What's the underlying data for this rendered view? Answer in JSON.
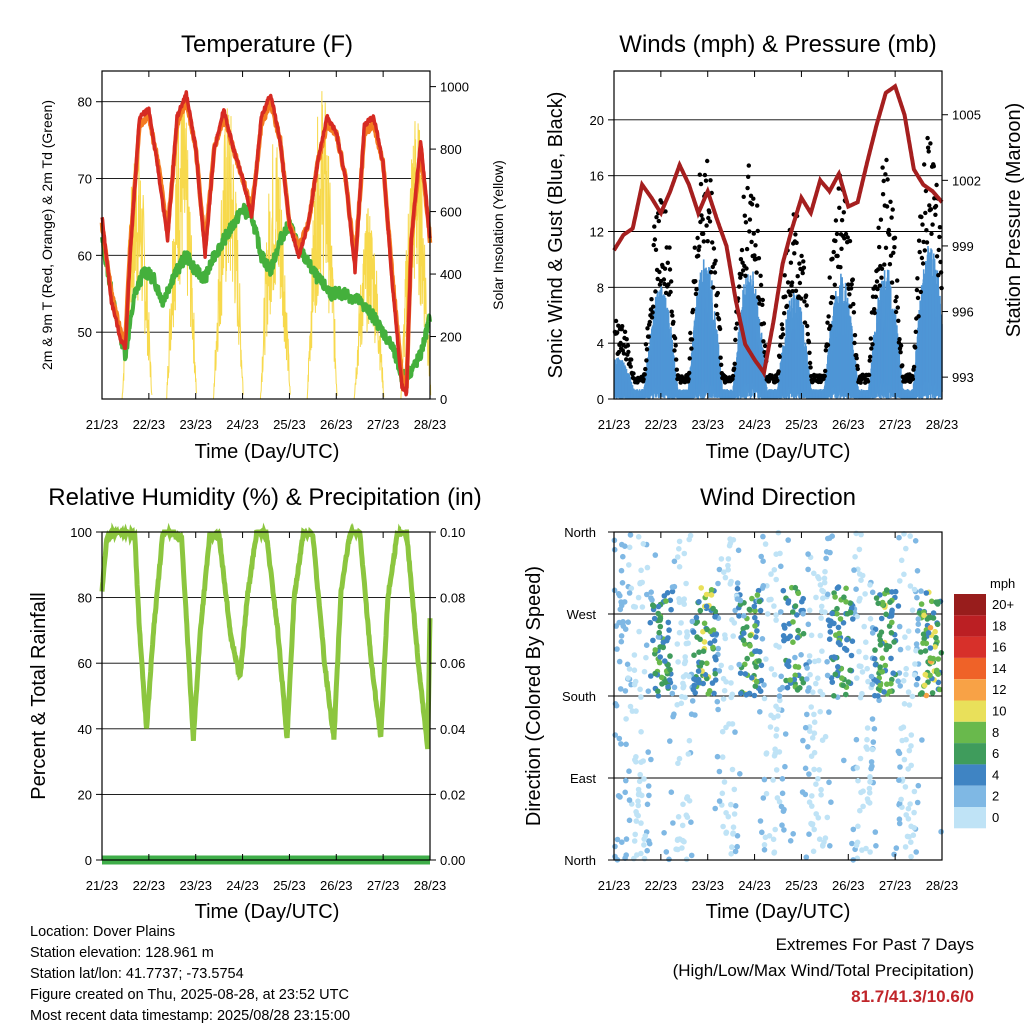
{
  "info": {
    "location": "Location: Dover Plains",
    "elevation": "Station elevation: 128.961 m",
    "latlon": "Station lat/lon: 41.7737; -73.5754",
    "created": "Figure created on Thu, 2025-08-28, at 23:52 UTC",
    "recent": "Most recent data timestamp: 2025/08/28 23:15:00"
  },
  "extremes": {
    "title": "Extremes For Past 7 Days",
    "subtitle": "(High/Low/Max Wind/Total Precipitation)",
    "value": "81.7/41.3/10.6/0"
  },
  "colors": {
    "temp_2m": "#d62a22",
    "temp_9m": "#f47c20",
    "dewpoint": "#44b03c",
    "solar": "#f7d94c",
    "wind": "#4f96d6",
    "gust": "#000000",
    "pressure": "#a51f1f",
    "rh": "#8cc63f",
    "precip": "#3fae49"
  },
  "chart_data": [
    {
      "id": "temperature",
      "type": "line",
      "title": "Temperature (F)",
      "xlabel": "Time (Day/UTC)",
      "ylabel": "2m & 9m T (Red, Orange) & 2m Td (Green)",
      "y2label": "Solar Insolation (Yellow)",
      "xticks": [
        "21/23",
        "22/23",
        "23/23",
        "24/23",
        "25/23",
        "26/23",
        "27/23",
        "28/23"
      ],
      "xlim": [
        0,
        7
      ],
      "ylim": [
        41.3,
        84
      ],
      "yticks": [
        50,
        60,
        70,
        80
      ],
      "y2lim": [
        0,
        1050
      ],
      "y2ticks": [
        0,
        200,
        400,
        600,
        800,
        1000
      ],
      "grid": true,
      "series": [
        {
          "key": "temp_2m",
          "x": [
            0,
            0.2,
            0.4,
            0.5,
            0.6,
            0.8,
            1.0,
            1.2,
            1.4,
            1.6,
            1.8,
            2.0,
            2.2,
            2.4,
            2.6,
            2.8,
            3.0,
            3.2,
            3.4,
            3.6,
            3.8,
            4.0,
            4.2,
            4.4,
            4.6,
            4.8,
            5.0,
            5.2,
            5.4,
            5.6,
            5.8,
            6.0,
            6.2,
            6.4,
            6.5,
            6.6,
            6.8,
            7.0
          ],
          "y": [
            65,
            54,
            49,
            48,
            60,
            78,
            79,
            71,
            62,
            78,
            81,
            74,
            60,
            74,
            79,
            74,
            70,
            65,
            78,
            81,
            75,
            64,
            60,
            64,
            72,
            78,
            76,
            70,
            58,
            77,
            78,
            72,
            56,
            43,
            42,
            62,
            75,
            62
          ]
        },
        {
          "key": "temp_9m",
          "x": [
            0,
            0.2,
            0.4,
            0.5,
            0.6,
            0.8,
            1.0,
            1.2,
            1.4,
            1.6,
            1.8,
            2.0,
            2.2,
            2.4,
            2.6,
            2.8,
            3.0,
            3.2,
            3.4,
            3.6,
            3.8,
            4.0,
            4.2,
            4.4,
            4.6,
            4.8,
            5.0,
            5.2,
            5.4,
            5.6,
            5.8,
            6.0,
            6.2,
            6.4,
            6.5,
            6.6,
            6.8,
            7.0
          ],
          "y": [
            64,
            55,
            50,
            49,
            61,
            77,
            78,
            72,
            63,
            77,
            80,
            74,
            61,
            74,
            78,
            74,
            70,
            66,
            77,
            80,
            75,
            64,
            61,
            64,
            72,
            77,
            76,
            70,
            59,
            76,
            77,
            72,
            57,
            44,
            43,
            62,
            74,
            62
          ]
        },
        {
          "key": "dewpoint",
          "x": [
            0,
            0.3,
            0.5,
            0.7,
            0.9,
            1.1,
            1.3,
            1.5,
            1.8,
            2.0,
            2.2,
            2.4,
            2.6,
            2.8,
            3.0,
            3.2,
            3.4,
            3.6,
            3.8,
            4.0,
            4.3,
            4.6,
            4.9,
            5.2,
            5.5,
            5.8,
            6.0,
            6.2,
            6.4,
            6.6,
            6.8,
            7.0
          ],
          "y": [
            62,
            52,
            47,
            55,
            58,
            57,
            54,
            57,
            60,
            58,
            57,
            60,
            62,
            64,
            66,
            65,
            60,
            58,
            62,
            64,
            60,
            57,
            55,
            55,
            54,
            52,
            50,
            48,
            44,
            45,
            47,
            52
          ]
        }
      ],
      "solar_peaks_x": [
        0.75,
        1.7,
        2.7,
        3.7,
        4.7,
        5.7,
        6.7
      ],
      "solar_peaks_y": [
        830,
        1010,
        960,
        880,
        1020,
        620,
        940
      ]
    },
    {
      "id": "winds",
      "type": "scatter",
      "title": "Winds (mph) & Pressure (mb)",
      "xlabel": "Time (Day/UTC)",
      "ylabel": "Sonic Wind & Gust (Blue, Black)",
      "y2label": "Station Pressure (Maroon)",
      "xticks": [
        "21/23",
        "22/23",
        "23/23",
        "24/23",
        "25/23",
        "26/23",
        "27/23",
        "28/23"
      ],
      "xlim": [
        0,
        7
      ],
      "ylim": [
        0,
        23.5
      ],
      "yticks": [
        0,
        4,
        8,
        12,
        16,
        20
      ],
      "y2lim": [
        992.0,
        1007.0
      ],
      "y2ticks": [
        993,
        996,
        999,
        1002,
        1005
      ],
      "grid": true,
      "pressure": {
        "x": [
          0,
          0.2,
          0.4,
          0.6,
          0.8,
          1.0,
          1.2,
          1.4,
          1.6,
          1.8,
          2.0,
          2.2,
          2.4,
          2.6,
          2.8,
          3.0,
          3.2,
          3.4,
          3.6,
          3.8,
          4.0,
          4.2,
          4.4,
          4.6,
          4.8,
          5.0,
          5.2,
          5.4,
          5.6,
          5.8,
          6.0,
          6.2,
          6.4,
          6.6,
          6.8,
          7.0
        ],
        "y": [
          998.8,
          999.5,
          999.8,
          1001.8,
          1001.2,
          1000.5,
          1001.5,
          1002.7,
          1001.8,
          1000.5,
          1001.5,
          1000.2,
          999.0,
          996.5,
          994.5,
          993.8,
          993.2,
          995.5,
          998.2,
          999.8,
          1001.2,
          1000.5,
          1002.0,
          1001.5,
          1002.3,
          1000.8,
          1001.0,
          1002.8,
          1004.5,
          1006.0,
          1006.3,
          1005.0,
          1002.5,
          1001.8,
          1001.5,
          1001.0
        ]
      },
      "wind_peaks_x": [
        0.1,
        1.0,
        1.95,
        2.9,
        3.85,
        4.85,
        5.8,
        6.75
      ],
      "wind_peaks_y": [
        2.5,
        6.8,
        8.5,
        8.0,
        6.5,
        7.5,
        8.0,
        9.5
      ]
    },
    {
      "id": "rh",
      "type": "line",
      "title": "Relative Humidity (%) & Precipitation (in)",
      "xlabel": "Time (Day/UTC)",
      "ylabel": "Percent & Total Rainfall",
      "xticks": [
        "21/23",
        "22/23",
        "23/23",
        "24/23",
        "25/23",
        "26/23",
        "27/23",
        "28/23"
      ],
      "xlim": [
        0,
        7
      ],
      "ylim": [
        0,
        100
      ],
      "yticks": [
        0,
        20,
        40,
        60,
        80,
        100
      ],
      "y2lim": [
        0,
        0.1
      ],
      "y2ticks": [
        "0.00",
        "0.02",
        "0.04",
        "0.06",
        "0.08",
        "0.10"
      ],
      "grid": true,
      "rh": {
        "x": [
          0,
          0.1,
          0.3,
          0.5,
          0.7,
          0.8,
          0.95,
          1.1,
          1.3,
          1.5,
          1.7,
          1.95,
          2.1,
          2.3,
          2.5,
          2.75,
          2.95,
          3.1,
          3.3,
          3.5,
          3.75,
          3.95,
          4.1,
          4.3,
          4.5,
          4.75,
          4.95,
          5.1,
          5.3,
          5.5,
          5.75,
          5.95,
          6.1,
          6.3,
          6.5,
          6.75,
          6.95,
          7.0
        ],
        "y": [
          82,
          98,
          100,
          100,
          99,
          70,
          40,
          70,
          100,
          100,
          98,
          37,
          70,
          99,
          99,
          68,
          56,
          80,
          100,
          100,
          70,
          37,
          80,
          100,
          99,
          60,
          37,
          82,
          100,
          100,
          60,
          37,
          80,
          99,
          100,
          60,
          34,
          74
        ]
      },
      "precip": [
        0,
        0
      ]
    },
    {
      "id": "direction",
      "type": "scatter",
      "title": "Wind Direction",
      "xlabel": "Time (Day/UTC)",
      "ylabel": "Direction (Colored By Speed)",
      "xticks": [
        "21/23",
        "22/23",
        "23/23",
        "24/23",
        "25/23",
        "26/23",
        "27/23",
        "28/23"
      ],
      "xlim": [
        0,
        7
      ],
      "ylim": [
        0,
        360
      ],
      "yticks": [
        "North",
        "East",
        "South",
        "West",
        "North"
      ],
      "grid": true,
      "legend": {
        "unit": "mph",
        "labels": [
          "20+",
          "18",
          "16",
          "14",
          "12",
          "10",
          "8",
          "6",
          "4",
          "2",
          "0"
        ],
        "colors": [
          "#981d1c",
          "#bb1f23",
          "#d7302a",
          "#ef6228",
          "#f8a246",
          "#e9e05a",
          "#69b94c",
          "#3f9c5c",
          "#3f84c3",
          "#7fb8e4",
          "#bfe3f6"
        ]
      }
    }
  ]
}
